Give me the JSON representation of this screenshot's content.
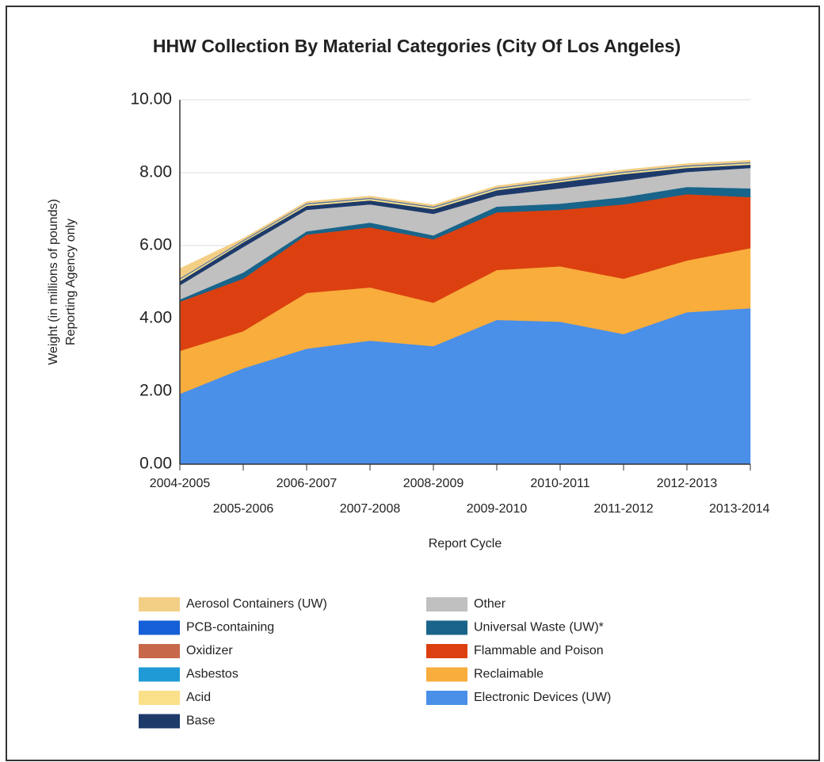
{
  "chart_data": {
    "type": "stacked_area",
    "title": "HHW Collection By Material Categories (City Of Los Angeles)",
    "x_label": "Report Cycle",
    "y_label": [
      "Weight (in millions of pounds)",
      "Reporting Agency only"
    ],
    "categories": [
      "2004-2005",
      "2005-2006",
      "2006-2007",
      "2007-2008",
      "2008-2009",
      "2009-2010",
      "2010-2011",
      "2011-2012",
      "2012-2013",
      "2013-2014"
    ],
    "ylim": [
      0,
      10
    ],
    "yticks": [
      {
        "value": 0,
        "label": "0.00"
      },
      {
        "value": 2,
        "label": "2.00"
      },
      {
        "value": 4,
        "label": "4.00"
      },
      {
        "value": 6,
        "label": "6.00"
      },
      {
        "value": 8,
        "label": "8.00"
      },
      {
        "value": 10,
        "label": "10.00"
      }
    ],
    "grid": true,
    "legend": "bottom",
    "series": [
      {
        "name": "Aerosol Containers (UW)",
        "color": "#f3cf86",
        "values": [
          0.27,
          0.05,
          0.05,
          0.05,
          0.05,
          0.05,
          0.05,
          0.05,
          0.05,
          0.05
        ]
      },
      {
        "name": "PCB-containing",
        "color": "#1560d8",
        "values": [
          0.01,
          0.01,
          0.01,
          0.01,
          0.01,
          0.01,
          0.01,
          0.01,
          0.01,
          0.01
        ]
      },
      {
        "name": "Oxidizer",
        "color": "#c8684a",
        "values": [
          0.01,
          0.01,
          0.01,
          0.01,
          0.01,
          0.01,
          0.01,
          0.01,
          0.01,
          0.01
        ]
      },
      {
        "name": "Asbestos",
        "color": "#1f9ad6",
        "values": [
          0.01,
          0.01,
          0.01,
          0.01,
          0.01,
          0.01,
          0.01,
          0.01,
          0.01,
          0.01
        ]
      },
      {
        "name": "Acid",
        "color": "#fbe08a",
        "values": [
          0.05,
          0.03,
          0.04,
          0.04,
          0.04,
          0.04,
          0.04,
          0.04,
          0.04,
          0.04
        ]
      },
      {
        "name": "Base",
        "color": "#1d3a6b",
        "values": [
          0.11,
          0.13,
          0.11,
          0.11,
          0.13,
          0.15,
          0.17,
          0.18,
          0.11,
          0.09
        ]
      },
      {
        "name": "Other",
        "color": "#c0c0c0",
        "values": [
          0.39,
          0.7,
          0.59,
          0.5,
          0.59,
          0.3,
          0.42,
          0.45,
          0.41,
          0.56
        ]
      },
      {
        "name": "Universal Waste (UW)*",
        "color": "#19648a",
        "values": [
          0.06,
          0.17,
          0.09,
          0.13,
          0.11,
          0.16,
          0.17,
          0.2,
          0.2,
          0.24
        ]
      },
      {
        "name": "Flammable and Poison",
        "color": "#dc4010",
        "values": [
          1.35,
          1.44,
          1.6,
          1.65,
          1.74,
          1.58,
          1.55,
          2.04,
          1.82,
          1.4
        ]
      },
      {
        "name": "Reclaimable",
        "color": "#f8ad3c",
        "values": [
          1.18,
          1.02,
          1.53,
          1.46,
          1.19,
          1.37,
          1.52,
          1.52,
          1.42,
          1.65
        ]
      },
      {
        "name": "Electronic Devices (UW)",
        "color": "#4a8fe8",
        "values": [
          1.93,
          2.63,
          3.17,
          3.39,
          3.24,
          3.96,
          3.91,
          3.57,
          4.17,
          4.28
        ]
      }
    ]
  }
}
